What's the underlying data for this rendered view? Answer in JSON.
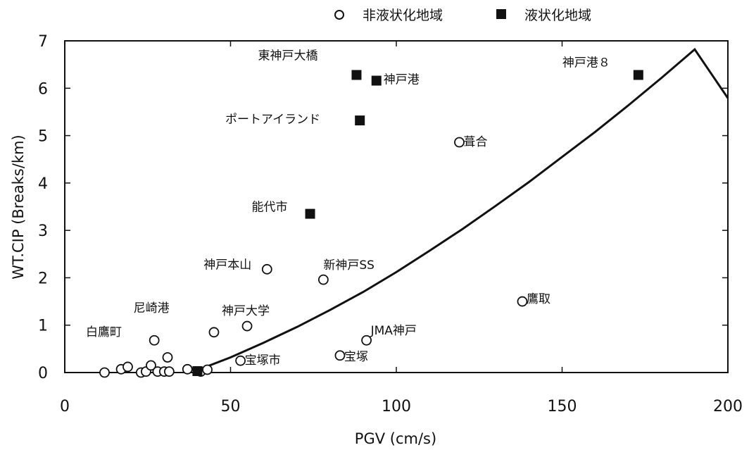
{
  "chart_data": {
    "type": "scatter",
    "xlabel": "PGV (cm/s)",
    "ylabel": "WT.CIP (Breaks/km)",
    "xlim": [
      0,
      200
    ],
    "ylim": [
      0,
      7
    ],
    "xticks": [
      0,
      50,
      100,
      150,
      200
    ],
    "yticks": [
      0,
      1,
      2,
      3,
      4,
      5,
      6,
      7
    ],
    "grid": false,
    "legend": {
      "position": "top",
      "entries": [
        {
          "name": "非液状化地域",
          "marker": "open-circle"
        },
        {
          "name": "液状化地域",
          "marker": "filled-square"
        }
      ]
    },
    "series": [
      {
        "name": "非液状化地域",
        "marker": "open-circle",
        "points": [
          {
            "x": 12,
            "y": 0.0
          },
          {
            "x": 17,
            "y": 0.07
          },
          {
            "x": 19,
            "y": 0.12
          },
          {
            "x": 23,
            "y": 0.0
          },
          {
            "x": 24.5,
            "y": 0.02
          },
          {
            "x": 26,
            "y": 0.15
          },
          {
            "x": 27,
            "y": 0.68,
            "label": "尼崎港"
          },
          {
            "x": 28,
            "y": 0.02
          },
          {
            "x": 30,
            "y": 0.02
          },
          {
            "x": 31,
            "y": 0.32
          },
          {
            "x": 31.5,
            "y": 0.02
          },
          {
            "x": 37,
            "y": 0.07
          },
          {
            "x": 41,
            "y": 0.02
          },
          {
            "x": 43,
            "y": 0.06
          },
          {
            "x": 45,
            "y": 0.85
          },
          {
            "x": 53,
            "y": 0.25,
            "label": "宝塚市"
          },
          {
            "x": 55,
            "y": 0.98,
            "label": "神戸大学"
          },
          {
            "x": 61,
            "y": 2.18,
            "label": "神戸本山"
          },
          {
            "x": 78,
            "y": 1.96,
            "label": "新神戸SS"
          },
          {
            "x": 83,
            "y": 0.36,
            "label": "宝塚"
          },
          {
            "x": 91,
            "y": 0.68,
            "label": "JMA神戸"
          },
          {
            "x": 119,
            "y": 4.86,
            "label": "葺合"
          },
          {
            "x": 138,
            "y": 1.5,
            "label": "鷹取"
          }
        ]
      },
      {
        "name": "液状化地域",
        "marker": "filled-square",
        "points": [
          {
            "x": 40,
            "y": 0.03
          },
          {
            "x": 74,
            "y": 3.35,
            "label": "能代市"
          },
          {
            "x": 88,
            "y": 6.28,
            "label": "東神戸大橋"
          },
          {
            "x": 89,
            "y": 5.32,
            "label": "ポートアイランド"
          },
          {
            "x": 94,
            "y": 6.16,
            "label": "神戸港"
          },
          {
            "x": 173,
            "y": 6.28,
            "label": "神戸港８"
          }
        ]
      }
    ],
    "curve": {
      "type": "line",
      "points": [
        [
          40,
          0.05
        ],
        [
          50,
          0.32
        ],
        [
          60,
          0.63
        ],
        [
          70,
          0.96
        ],
        [
          80,
          1.32
        ],
        [
          90,
          1.7
        ],
        [
          100,
          2.12
        ],
        [
          110,
          2.57
        ],
        [
          120,
          3.03
        ],
        [
          130,
          3.52
        ],
        [
          140,
          4.02
        ],
        [
          150,
          4.55
        ],
        [
          160,
          5.08
        ],
        [
          170,
          5.64
        ],
        [
          180,
          6.22
        ],
        [
          190,
          6.82
        ],
        [
          200,
          5.79
        ]
      ]
    },
    "free_labels": [
      "白鷹町"
    ]
  },
  "colors": {
    "ink": "#111111",
    "background": "#ffffff"
  }
}
